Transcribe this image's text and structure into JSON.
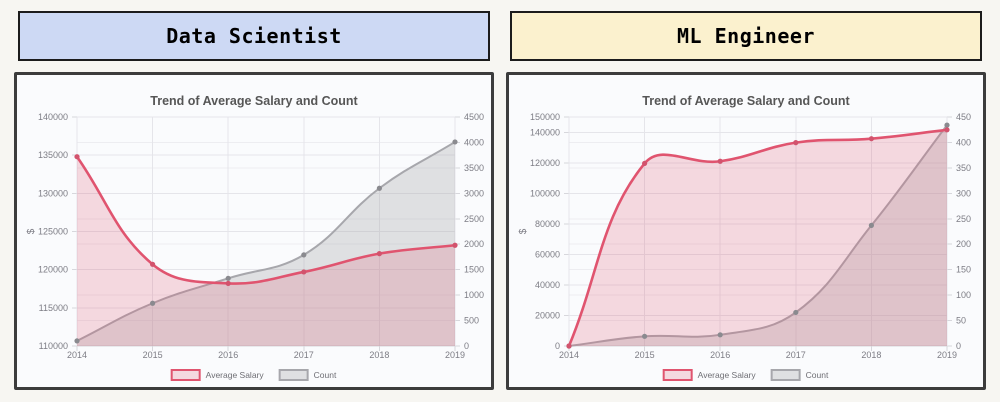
{
  "page": {
    "background": "#f7f6f2"
  },
  "headers": [
    {
      "label": "Data Scientist",
      "background": "#cdd9f4",
      "border": "#1c1c1c"
    },
    {
      "label": "ML Engineer",
      "background": "#fbf1ce",
      "border": "#1c1c1c"
    }
  ],
  "chart_data": [
    {
      "type": "area",
      "title": "Trend of Average Salary and Count",
      "ylabel": "$",
      "categories": [
        "2014",
        "2015",
        "2016",
        "2017",
        "2018",
        "2019"
      ],
      "left_axis": {
        "min": 110000,
        "max": 140000,
        "ticks": [
          110000,
          115000,
          120000,
          125000,
          130000,
          135000,
          140000
        ]
      },
      "right_axis": {
        "min": 0,
        "max": 4500,
        "ticks": [
          0,
          500,
          1000,
          1500,
          2000,
          2500,
          3000,
          3500,
          4000,
          4500
        ]
      },
      "series": [
        {
          "name": "Average Salary",
          "axis": "left",
          "values": [
            134800,
            120700,
            118200,
            119700,
            122100,
            123200
          ],
          "line_color": "#e0546f",
          "fill_color": "rgba(225,92,118,0.22)",
          "point_color": "#d2536d"
        },
        {
          "name": "Count",
          "axis": "right",
          "values": [
            100,
            840,
            1330,
            1790,
            3100,
            4010
          ],
          "line_color": "#a7a7ac",
          "fill_color": "rgba(162,162,167,0.30)",
          "point_color": "#8a8a8f"
        }
      ],
      "legend_position": "bottom",
      "grid": true
    },
    {
      "type": "area",
      "title": "Trend of Average Salary and Count",
      "ylabel": "$",
      "categories": [
        "2014",
        "2015",
        "2016",
        "2017",
        "2018",
        "2019"
      ],
      "left_axis": {
        "min": 0,
        "max": 150000,
        "ticks": [
          0,
          20000,
          40000,
          60000,
          80000,
          100000,
          120000,
          140000,
          150000
        ]
      },
      "right_axis": {
        "min": 0,
        "max": 450,
        "ticks": [
          0,
          50,
          100,
          150,
          200,
          250,
          300,
          350,
          400,
          450
        ]
      },
      "series": [
        {
          "name": "Average Salary",
          "axis": "left",
          "values": [
            0,
            119600,
            121000,
            133200,
            135800,
            141600
          ],
          "line_color": "#e0546f",
          "fill_color": "rgba(225,92,118,0.22)",
          "point_color": "#d2536d"
        },
        {
          "name": "Count",
          "axis": "right",
          "values": [
            0,
            19,
            22,
            66,
            237,
            434
          ],
          "line_color": "#a7a7ac",
          "fill_color": "rgba(162,162,167,0.30)",
          "point_color": "#8a8a8f"
        }
      ],
      "legend_position": "bottom",
      "grid": true
    }
  ],
  "styles": {
    "grid_color": "#e5e5ea",
    "grid_minor_color": "#ededf1",
    "axis_line_color": "#d7d7dc",
    "title_color": "#565656",
    "tick_color": "#7d7d85",
    "legend_text_color": "#6e6e74"
  }
}
